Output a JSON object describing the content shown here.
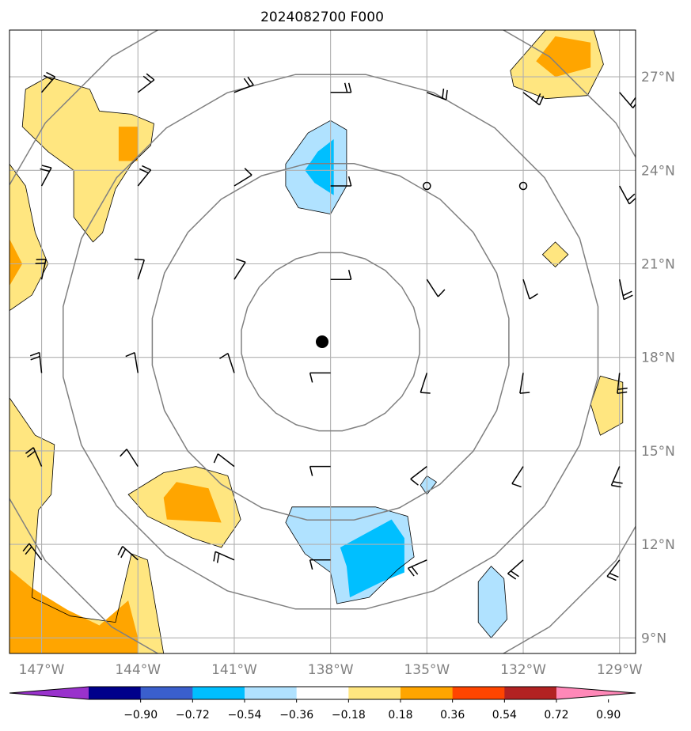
{
  "title": "2024082700 F000",
  "chart_data": {
    "type": "map",
    "title": "2024082700 F000",
    "lon_range": [
      -148,
      -128.5
    ],
    "lat_range": [
      8.5,
      28.5
    ],
    "lon_ticks": [
      "147°W",
      "144°W",
      "141°W",
      "138°W",
      "135°W",
      "132°W",
      "129°W"
    ],
    "lat_ticks": [
      "9°N",
      "12°N",
      "15°N",
      "18°N",
      "21°N",
      "24°N",
      "27°N"
    ],
    "center": {
      "lon": -138,
      "lat": 18.5
    },
    "grid": true,
    "colorbar": {
      "ticks": [
        "−0.90",
        "−0.72",
        "−0.54",
        "−0.36",
        "−0.18",
        "0.18",
        "0.36",
        "0.54",
        "0.72",
        "0.90"
      ],
      "colors": [
        "#9932cc",
        "#00008b",
        "#3a5fcd",
        "#00bfff",
        "#b0e2ff",
        "#ffffff",
        "#ffe680",
        "#ffa500",
        "#ff4500",
        "#b22222",
        "#ff88b8"
      ]
    },
    "shaded_regions": [
      {
        "level": 0.18,
        "color": "#ffe680",
        "points": [
          [
            -147.5,
            26.6
          ],
          [
            -146.8,
            27.0
          ],
          [
            -145.5,
            26.6
          ],
          [
            -145.2,
            25.9
          ],
          [
            -144.2,
            25.8
          ],
          [
            -143.5,
            25.5
          ],
          [
            -143.6,
            24.8
          ],
          [
            -144.2,
            24.2
          ],
          [
            -144.7,
            23.4
          ],
          [
            -145.1,
            22.0
          ],
          [
            -145.4,
            21.7
          ],
          [
            -146.0,
            22.5
          ],
          [
            -146.0,
            24.0
          ],
          [
            -146.8,
            24.6
          ],
          [
            -147.6,
            25.4
          ]
        ]
      },
      {
        "level": 0.36,
        "color": "#ffa500",
        "points": [
          [
            -144.6,
            25.4
          ],
          [
            -144.0,
            25.4
          ],
          [
            -144.0,
            24.3
          ],
          [
            -144.6,
            24.3
          ]
        ]
      },
      {
        "level": 0.18,
        "color": "#ffe680",
        "points": [
          [
            -148,
            24.2
          ],
          [
            -147.5,
            23.5
          ],
          [
            -147.2,
            22.0
          ],
          [
            -146.8,
            21.0
          ],
          [
            -147.3,
            20.0
          ],
          [
            -148,
            19.5
          ]
        ]
      },
      {
        "level": 0.36,
        "color": "#ffa500",
        "points": [
          [
            -148,
            21.8
          ],
          [
            -147.6,
            21.0
          ],
          [
            -148,
            20.3
          ]
        ]
      },
      {
        "level": 0.18,
        "color": "#ffe680",
        "points": [
          [
            -131.3,
            28.5
          ],
          [
            -129.8,
            28.5
          ],
          [
            -129.5,
            27.4
          ],
          [
            -130.0,
            26.4
          ],
          [
            -131.3,
            26.3
          ],
          [
            -132.3,
            26.7
          ],
          [
            -132.4,
            27.2
          ]
        ]
      },
      {
        "level": 0.36,
        "color": "#ffa500",
        "points": [
          [
            -131.0,
            28.3
          ],
          [
            -129.9,
            28.1
          ],
          [
            -129.9,
            27.3
          ],
          [
            -131.0,
            27.0
          ],
          [
            -131.6,
            27.5
          ]
        ]
      },
      {
        "level": 0.18,
        "color": "#ffe680",
        "points": [
          [
            -131.0,
            21.7
          ],
          [
            -130.6,
            21.3
          ],
          [
            -131.0,
            20.9
          ],
          [
            -131.4,
            21.3
          ]
        ]
      },
      {
        "level": 0.18,
        "color": "#ffe680",
        "points": [
          [
            -129.6,
            17.4
          ],
          [
            -128.9,
            17.2
          ],
          [
            -128.9,
            15.9
          ],
          [
            -129.6,
            15.5
          ],
          [
            -129.9,
            16.5
          ]
        ]
      },
      {
        "level": 0.18,
        "color": "#ffe680",
        "points": [
          [
            -142.2,
            14.5
          ],
          [
            -141.2,
            14.2
          ],
          [
            -140.8,
            12.8
          ],
          [
            -141.4,
            11.9
          ],
          [
            -142.3,
            12.2
          ],
          [
            -143.7,
            12.9
          ],
          [
            -144.3,
            13.6
          ],
          [
            -143.2,
            14.3
          ]
        ]
      },
      {
        "level": 0.36,
        "color": "#ffa500",
        "points": [
          [
            -142.8,
            14.0
          ],
          [
            -141.8,
            13.8
          ],
          [
            -141.4,
            12.7
          ],
          [
            -143.1,
            12.8
          ],
          [
            -143.2,
            13.5
          ]
        ]
      },
      {
        "level": 0.18,
        "color": "#ffe680",
        "points": [
          [
            -148,
            16.7
          ],
          [
            -147.2,
            15.5
          ],
          [
            -146.6,
            15.2
          ],
          [
            -146.7,
            13.6
          ],
          [
            -147.1,
            13.1
          ],
          [
            -147.3,
            10.3
          ],
          [
            -146.1,
            9.7
          ],
          [
            -144.7,
            9.5
          ],
          [
            -144.2,
            11.7
          ],
          [
            -143.7,
            11.5
          ],
          [
            -143.2,
            8.5
          ],
          [
            -148,
            8.5
          ]
        ]
      },
      {
        "level": 0.36,
        "color": "#ffa500",
        "points": [
          [
            -148,
            11.2
          ],
          [
            -147.3,
            10.6
          ],
          [
            -146.2,
            9.9
          ],
          [
            -145.2,
            9.4
          ],
          [
            -144.3,
            10.2
          ],
          [
            -144.0,
            9.0
          ],
          [
            -144.0,
            8.5
          ],
          [
            -148,
            8.5
          ]
        ]
      },
      {
        "level": -0.18,
        "color": "#b0e2ff",
        "points": [
          [
            -138.0,
            25.6
          ],
          [
            -137.5,
            25.3
          ],
          [
            -137.5,
            23.5
          ],
          [
            -138.0,
            22.6
          ],
          [
            -139.0,
            22.8
          ],
          [
            -139.4,
            23.5
          ],
          [
            -139.4,
            24.2
          ],
          [
            -138.7,
            25.2
          ]
        ]
      },
      {
        "level": -0.36,
        "color": "#00bfff",
        "points": [
          [
            -137.9,
            25.0
          ],
          [
            -137.9,
            23.2
          ],
          [
            -138.5,
            23.6
          ],
          [
            -138.8,
            24.0
          ],
          [
            -138.4,
            24.6
          ]
        ]
      },
      {
        "level": -0.18,
        "color": "#b0e2ff",
        "points": [
          [
            -139.2,
            13.2
          ],
          [
            -136.6,
            13.2
          ],
          [
            -135.6,
            12.9
          ],
          [
            -135.4,
            11.6
          ],
          [
            -135.9,
            11.2
          ],
          [
            -136.8,
            10.3
          ],
          [
            -137.8,
            10.1
          ],
          [
            -138.0,
            11.1
          ],
          [
            -138.8,
            11.7
          ],
          [
            -139.4,
            12.7
          ]
        ]
      },
      {
        "level": -0.36,
        "color": "#00bfff",
        "points": [
          [
            -136.1,
            12.8
          ],
          [
            -135.7,
            12.2
          ],
          [
            -135.7,
            11.1
          ],
          [
            -136.4,
            10.8
          ],
          [
            -137.4,
            10.3
          ],
          [
            -137.5,
            11.3
          ],
          [
            -137.7,
            11.9
          ]
        ]
      },
      {
        "level": -0.18,
        "color": "#b0e2ff",
        "points": [
          [
            -135.0,
            14.2
          ],
          [
            -134.7,
            14.0
          ],
          [
            -135.0,
            13.6
          ],
          [
            -135.2,
            13.9
          ]
        ]
      },
      {
        "level": -0.18,
        "color": "#b0e2ff",
        "points": [
          [
            -133.0,
            11.3
          ],
          [
            -132.6,
            10.9
          ],
          [
            -132.5,
            9.6
          ],
          [
            -133.0,
            9.0
          ],
          [
            -133.4,
            9.5
          ],
          [
            -133.4,
            10.8
          ]
        ]
      }
    ],
    "contour_circles_deg": [
      2.8,
      5.6,
      8.4,
      11.2
    ],
    "wind_barbs": [
      {
        "lon": -147,
        "lat": 26.5
      },
      {
        "lon": -144,
        "lat": 26.5
      },
      {
        "lon": -141,
        "lat": 26.5
      },
      {
        "lon": -138,
        "lat": 26.5
      },
      {
        "lon": -135,
        "lat": 26.5
      },
      {
        "lon": -132,
        "lat": 26.5
      },
      {
        "lon": -129,
        "lat": 26.5
      },
      {
        "lon": -147,
        "lat": 23.5
      },
      {
        "lon": -144,
        "lat": 23.5
      },
      {
        "lon": -141,
        "lat": 23.5
      },
      {
        "lon": -138,
        "lat": 23.5
      },
      {
        "lon": -135,
        "lat": 23.5,
        "calm": true
      },
      {
        "lon": -132,
        "lat": 23.5,
        "calm": true
      },
      {
        "lon": -129,
        "lat": 23.5
      },
      {
        "lon": -147,
        "lat": 20.5
      },
      {
        "lon": -144,
        "lat": 20.5
      },
      {
        "lon": -141,
        "lat": 20.5
      },
      {
        "lon": -138,
        "lat": 20.5
      },
      {
        "lon": -135,
        "lat": 20.5
      },
      {
        "lon": -132,
        "lat": 20.5
      },
      {
        "lon": -129,
        "lat": 20.5
      },
      {
        "lon": -147,
        "lat": 17.5
      },
      {
        "lon": -144,
        "lat": 17.5
      },
      {
        "lon": -141,
        "lat": 17.5
      },
      {
        "lon": -138,
        "lat": 17.5
      },
      {
        "lon": -135,
        "lat": 17.5
      },
      {
        "lon": -132,
        "lat": 17.5
      },
      {
        "lon": -129,
        "lat": 17.5
      },
      {
        "lon": -147,
        "lat": 14.5
      },
      {
        "lon": -144,
        "lat": 14.5
      },
      {
        "lon": -141,
        "lat": 14.5
      },
      {
        "lon": -138,
        "lat": 14.5
      },
      {
        "lon": -135,
        "lat": 14.5
      },
      {
        "lon": -132,
        "lat": 14.5
      },
      {
        "lon": -129,
        "lat": 14.5
      },
      {
        "lon": -147,
        "lat": 11.5
      },
      {
        "lon": -144,
        "lat": 11.5
      },
      {
        "lon": -141,
        "lat": 11.5
      },
      {
        "lon": -138,
        "lat": 11.5
      },
      {
        "lon": -135,
        "lat": 11.5
      },
      {
        "lon": -132,
        "lat": 11.5
      },
      {
        "lon": -129,
        "lat": 11.5
      }
    ]
  }
}
